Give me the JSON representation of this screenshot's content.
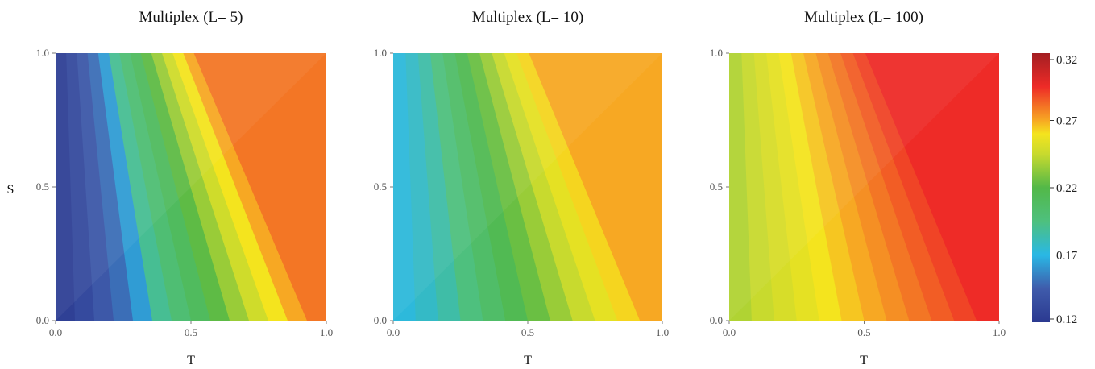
{
  "chart_data": [
    {
      "type": "heatmap",
      "title": "Multiplex (L= 5)",
      "xlabel": "T",
      "ylabel": "S",
      "xlim": [
        0,
        1
      ],
      "ylim": [
        0,
        1
      ],
      "x_ticks": [
        "0.0",
        "0.5",
        "1.0"
      ],
      "y_ticks": [
        "0.0",
        "0.5",
        "1.0"
      ],
      "color_range": [
        0.12,
        0.32
      ],
      "values_at_S0": [
        0.13,
        0.14,
        0.155,
        0.165,
        0.185,
        0.2,
        0.215,
        0.23,
        0.245,
        0.26,
        0.275,
        0.29,
        0.3,
        0.31
      ],
      "values_at_S1": [
        0.12,
        0.125,
        0.13,
        0.135,
        0.14,
        0.18,
        0.185,
        0.19,
        0.2,
        0.21,
        0.22,
        0.23,
        0.24,
        0.25
      ]
    },
    {
      "type": "heatmap",
      "title": "Multiplex (L= 10)",
      "xlabel": "T",
      "ylabel": "",
      "xlim": [
        0,
        1
      ],
      "ylim": [
        0,
        1
      ],
      "x_ticks": [
        "0.0",
        "0.5",
        "1.0"
      ],
      "y_ticks": [
        "0.0",
        "0.5",
        "1.0"
      ],
      "color_range": [
        0.12,
        0.32
      ],
      "values_at_S0": [
        0.2,
        0.205,
        0.21,
        0.22,
        0.23,
        0.24,
        0.25,
        0.26,
        0.27,
        0.28,
        0.29,
        0.3
      ],
      "values_at_S1": [
        0.145,
        0.15,
        0.16,
        0.17,
        0.18,
        0.19,
        0.2,
        0.21,
        0.22,
        0.23,
        0.235,
        0.24
      ]
    },
    {
      "type": "heatmap",
      "title": "Multiplex (L= 100)",
      "xlabel": "T",
      "ylabel": "",
      "xlim": [
        0,
        1
      ],
      "ylim": [
        0,
        1
      ],
      "x_ticks": [
        "0.0",
        "0.5",
        "1.0"
      ],
      "y_ticks": [
        "0.0",
        "0.5",
        "1.0"
      ],
      "color_range": [
        0.12,
        0.32
      ],
      "values_at_S0": [
        0.25,
        0.255,
        0.26,
        0.265,
        0.27,
        0.275,
        0.28,
        0.285,
        0.29,
        0.295,
        0.3,
        0.305
      ],
      "values_at_S1": [
        0.23,
        0.235,
        0.24,
        0.245,
        0.25,
        0.255,
        0.26,
        0.265,
        0.27,
        0.275,
        0.28,
        0.285
      ]
    }
  ],
  "colorbar": {
    "ticks": [
      "0.12",
      "0.17",
      "0.22",
      "0.27",
      "0.32"
    ],
    "tick_values": [
      0.12,
      0.17,
      0.22,
      0.27,
      0.32
    ],
    "range": [
      0.12,
      0.32
    ],
    "stops": [
      {
        "v": 0.12,
        "color": "#2b3990"
      },
      {
        "v": 0.145,
        "color": "#3f5bab"
      },
      {
        "v": 0.17,
        "color": "#29b8e5"
      },
      {
        "v": 0.195,
        "color": "#4ec07e"
      },
      {
        "v": 0.22,
        "color": "#52b848"
      },
      {
        "v": 0.245,
        "color": "#c8da2e"
      },
      {
        "v": 0.26,
        "color": "#f4e41e"
      },
      {
        "v": 0.27,
        "color": "#f7a823"
      },
      {
        "v": 0.295,
        "color": "#ee2b27"
      },
      {
        "v": 0.32,
        "color": "#a31e22"
      }
    ]
  }
}
